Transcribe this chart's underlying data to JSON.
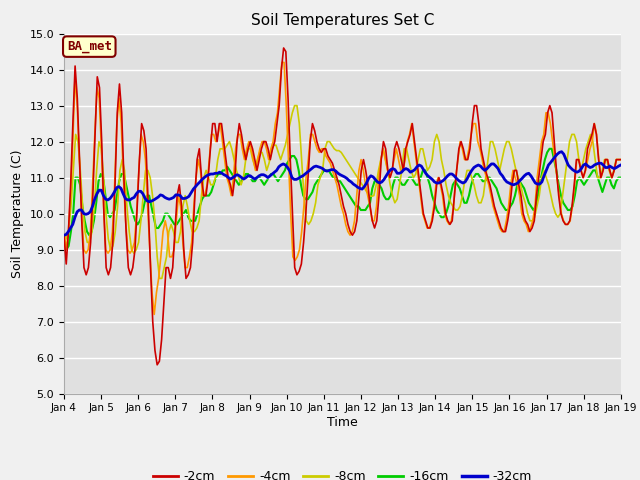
{
  "title": "Soil Temperatures Set C",
  "xlabel": "Time",
  "ylabel": "Soil Temperature (C)",
  "ylim": [
    5.0,
    15.0
  ],
  "yticks": [
    5.0,
    6.0,
    7.0,
    8.0,
    9.0,
    10.0,
    11.0,
    12.0,
    13.0,
    14.0,
    15.0
  ],
  "fig_bg_color": "#f0f0f0",
  "plot_bg_color": "#e0e0e0",
  "annotation_text": "BA_met",
  "annotation_bg": "#ffffcc",
  "annotation_border": "#800000",
  "legend_entries": [
    "-2cm",
    "-4cm",
    "-8cm",
    "-16cm",
    "-32cm"
  ],
  "line_colors": [
    "#cc0000",
    "#ff9900",
    "#cccc00",
    "#00cc00",
    "#0000cc"
  ],
  "line_widths": [
    1.2,
    1.2,
    1.2,
    1.5,
    2.0
  ],
  "xtick_labels": [
    "Jan 4",
    "Jan 5",
    "Jan 6",
    "Jan 7",
    "Jan 8",
    "Jan 9",
    "Jan 10",
    "Jan 11",
    "Jan 12",
    "Jan 13",
    "Jan 14",
    "Jan 15",
    "Jan 16",
    "Jan 17",
    "Jan 18",
    "Jan 19"
  ],
  "time_days": 15,
  "depth_2cm": [
    9.4,
    8.6,
    9.5,
    10.8,
    12.5,
    14.1,
    13.2,
    11.5,
    9.8,
    8.5,
    8.3,
    8.5,
    9.2,
    10.5,
    12.2,
    13.8,
    13.5,
    12.0,
    10.0,
    8.5,
    8.3,
    8.5,
    9.2,
    10.8,
    12.8,
    13.6,
    12.8,
    11.0,
    9.5,
    8.5,
    8.3,
    8.5,
    9.0,
    10.2,
    11.5,
    12.5,
    12.3,
    11.8,
    10.2,
    8.5,
    7.0,
    6.2,
    5.8,
    5.9,
    6.5,
    7.5,
    8.5,
    8.5,
    8.2,
    8.5,
    9.5,
    10.5,
    10.8,
    10.2,
    9.0,
    8.2,
    8.3,
    8.5,
    9.2,
    10.5,
    11.5,
    11.8,
    11.0,
    10.5,
    10.5,
    11.0,
    11.8,
    12.5,
    12.5,
    12.0,
    12.5,
    12.5,
    12.0,
    11.5,
    11.0,
    10.8,
    10.5,
    11.0,
    12.0,
    12.5,
    12.2,
    11.8,
    11.5,
    11.8,
    12.0,
    11.8,
    11.5,
    11.2,
    11.5,
    11.8,
    12.0,
    12.0,
    11.8,
    11.5,
    11.8,
    12.0,
    12.5,
    13.0,
    14.0,
    14.6,
    14.5,
    13.2,
    11.5,
    10.0,
    8.5,
    8.3,
    8.4,
    8.6,
    9.2,
    10.0,
    11.0,
    12.0,
    12.5,
    12.3,
    12.0,
    11.8,
    11.7,
    11.8,
    11.8,
    11.6,
    11.5,
    11.4,
    11.2,
    11.0,
    10.8,
    10.5,
    10.2,
    10.0,
    9.7,
    9.5,
    9.4,
    9.5,
    9.8,
    10.5,
    11.2,
    11.5,
    11.2,
    10.8,
    10.2,
    9.8,
    9.6,
    9.8,
    10.5,
    11.5,
    12.0,
    11.8,
    11.2,
    11.0,
    11.2,
    11.8,
    12.0,
    11.8,
    11.5,
    11.2,
    11.8,
    12.0,
    12.2,
    12.5,
    12.0,
    11.5,
    11.0,
    10.5,
    10.0,
    9.8,
    9.6,
    9.6,
    9.8,
    10.2,
    10.8,
    11.0,
    10.8,
    10.5,
    10.0,
    9.8,
    9.7,
    9.8,
    10.5,
    11.2,
    11.8,
    12.0,
    11.8,
    11.5,
    11.5,
    11.8,
    12.5,
    13.0,
    13.0,
    12.5,
    11.8,
    11.5,
    11.2,
    11.0,
    10.8,
    10.5,
    10.2,
    10.0,
    9.8,
    9.6,
    9.5,
    9.5,
    9.8,
    10.2,
    10.8,
    11.2,
    11.2,
    10.8,
    10.5,
    10.0,
    9.8,
    9.7,
    9.5,
    9.6,
    9.8,
    10.5,
    11.0,
    11.5,
    12.0,
    12.2,
    12.8,
    13.0,
    12.8,
    12.0,
    11.2,
    10.5,
    10.0,
    9.8,
    9.7,
    9.7,
    9.8,
    10.2,
    10.8,
    11.5,
    11.5,
    11.2,
    11.0,
    11.2,
    11.8,
    12.0,
    12.2,
    12.5,
    12.2,
    11.5,
    11.0,
    11.2,
    11.5,
    11.5,
    11.2,
    11.0,
    11.2,
    11.5,
    11.5,
    11.5
  ],
  "depth_4cm": [
    9.5,
    9.0,
    9.5,
    10.5,
    12.0,
    13.8,
    13.0,
    11.5,
    10.0,
    9.0,
    8.9,
    9.0,
    9.5,
    10.8,
    12.2,
    13.5,
    13.2,
    11.8,
    10.2,
    9.0,
    8.9,
    9.0,
    9.5,
    10.8,
    12.5,
    13.2,
    12.5,
    11.0,
    9.8,
    9.0,
    8.9,
    9.0,
    9.2,
    10.0,
    11.2,
    12.2,
    12.0,
    11.5,
    10.2,
    9.0,
    7.8,
    7.2,
    7.8,
    8.2,
    8.8,
    9.5,
    9.8,
    9.5,
    8.8,
    8.8,
    9.0,
    9.8,
    10.5,
    10.2,
    9.2,
    8.5,
    8.5,
    8.8,
    9.2,
    10.2,
    11.0,
    11.5,
    11.2,
    10.5,
    10.5,
    10.8,
    11.5,
    12.2,
    12.2,
    12.0,
    12.2,
    12.5,
    12.0,
    11.5,
    11.0,
    10.8,
    10.5,
    11.0,
    11.8,
    12.2,
    12.2,
    11.8,
    11.5,
    11.8,
    12.0,
    11.8,
    11.5,
    11.2,
    11.5,
    11.8,
    12.0,
    12.0,
    11.8,
    11.5,
    11.8,
    12.0,
    12.5,
    12.8,
    13.5,
    14.2,
    14.2,
    13.0,
    11.5,
    10.0,
    8.8,
    8.7,
    8.8,
    9.0,
    9.5,
    10.2,
    11.0,
    11.5,
    12.2,
    12.2,
    12.0,
    11.8,
    11.7,
    11.8,
    11.8,
    11.6,
    11.5,
    11.4,
    11.2,
    11.0,
    10.8,
    10.5,
    10.2,
    10.0,
    9.7,
    9.5,
    9.4,
    9.5,
    9.8,
    10.5,
    11.2,
    11.5,
    11.2,
    10.8,
    10.5,
    10.2,
    9.8,
    9.8,
    10.2,
    11.0,
    11.5,
    11.8,
    11.5,
    11.2,
    11.0,
    11.2,
    11.5,
    11.8,
    11.5,
    11.2,
    11.2,
    11.5,
    12.0,
    12.2,
    12.5,
    12.0,
    11.5,
    11.0,
    10.5,
    10.0,
    9.8,
    9.6,
    9.6,
    9.8,
    10.2,
    10.8,
    11.0,
    10.8,
    10.5,
    10.0,
    9.8,
    9.7,
    9.8,
    10.2,
    11.0,
    11.5,
    12.0,
    11.8,
    11.5,
    11.5,
    11.8,
    12.2,
    12.5,
    12.5,
    12.0,
    11.8,
    11.5,
    11.2,
    11.0,
    10.8,
    10.5,
    10.2,
    10.0,
    9.8,
    9.6,
    9.5,
    9.5,
    9.8,
    10.2,
    10.8,
    11.2,
    11.0,
    10.8,
    10.5,
    10.0,
    9.8,
    9.7,
    9.5,
    9.6,
    9.8,
    10.2,
    11.0,
    11.5,
    12.0,
    12.2,
    12.8,
    12.8,
    12.5,
    12.0,
    11.5,
    11.0,
    10.5,
    10.0,
    9.8,
    9.7,
    9.7,
    9.8,
    10.2,
    10.8,
    11.5,
    11.5,
    11.2,
    11.0,
    11.2,
    11.5,
    11.8,
    12.0,
    12.5,
    12.2,
    11.5,
    11.0,
    11.2,
    11.5,
    11.5,
    11.2,
    11.0,
    11.2,
    11.5,
    11.5,
    11.5
  ],
  "depth_8cm": [
    9.5,
    9.3,
    9.5,
    10.2,
    11.2,
    12.2,
    12.0,
    11.2,
    10.2,
    9.5,
    9.2,
    9.2,
    9.5,
    10.2,
    11.2,
    12.0,
    11.8,
    11.0,
    10.0,
    9.3,
    9.0,
    9.1,
    9.5,
    10.2,
    11.2,
    11.5,
    11.2,
    10.2,
    9.5,
    9.0,
    8.9,
    9.0,
    9.2,
    9.8,
    10.5,
    11.2,
    11.2,
    11.0,
    10.5,
    9.8,
    8.8,
    8.2,
    8.2,
    8.5,
    8.8,
    9.5,
    9.7,
    9.5,
    9.2,
    9.2,
    9.5,
    10.2,
    10.5,
    10.2,
    9.8,
    9.5,
    9.5,
    9.6,
    9.8,
    10.5,
    11.0,
    11.2,
    11.0,
    10.8,
    10.8,
    11.0,
    11.5,
    11.8,
    11.8,
    11.8,
    11.9,
    12.0,
    11.8,
    11.5,
    11.2,
    11.0,
    10.8,
    11.0,
    11.5,
    11.8,
    11.8,
    11.5,
    11.3,
    11.5,
    11.7,
    11.7,
    11.5,
    11.2,
    11.4,
    11.7,
    11.9,
    11.9,
    11.7,
    11.5,
    11.7,
    11.9,
    12.2,
    12.5,
    12.8,
    13.0,
    13.0,
    12.5,
    11.5,
    10.5,
    9.8,
    9.7,
    9.8,
    10.0,
    10.3,
    10.8,
    11.0,
    11.2,
    11.8,
    12.0,
    12.0,
    11.9,
    11.8,
    11.75,
    11.75,
    11.7,
    11.6,
    11.5,
    11.4,
    11.3,
    11.2,
    11.1,
    11.0,
    10.9,
    10.8,
    10.7,
    10.6,
    10.5,
    10.48,
    10.5,
    10.8,
    11.2,
    11.5,
    11.8,
    11.5,
    11.2,
    10.8,
    10.5,
    10.3,
    10.4,
    10.8,
    11.2,
    11.8,
    11.8,
    11.5,
    11.2,
    11.0,
    11.1,
    11.5,
    11.8,
    11.8,
    11.5,
    11.2,
    11.3,
    11.5,
    12.0,
    12.2,
    12.0,
    11.5,
    11.2,
    10.8,
    10.5,
    10.3,
    10.2,
    10.1,
    10.1,
    10.2,
    10.5,
    10.9,
    11.2,
    11.2,
    11.0,
    10.8,
    10.5,
    10.3,
    10.3,
    10.5,
    11.0,
    11.5,
    12.0,
    12.0,
    11.8,
    11.5,
    11.2,
    11.5,
    11.8,
    12.0,
    12.0,
    11.8,
    11.5,
    11.2,
    11.0,
    10.8,
    10.5,
    10.3,
    10.0,
    9.8,
    9.8,
    9.9,
    10.2,
    10.5,
    11.0,
    11.2,
    11.0,
    10.8,
    10.5,
    10.2,
    10.0,
    9.9,
    10.0,
    10.5,
    11.0,
    11.5,
    12.0,
    12.2,
    12.2,
    12.0,
    11.5,
    11.2,
    11.5,
    11.8,
    12.0,
    12.2,
    12.0,
    11.5,
    11.0,
    11.0,
    11.2,
    11.5,
    11.5,
    11.2,
    11.0,
    11.2,
    11.5,
    11.5,
    11.5
  ],
  "depth_16cm": [
    9.1,
    9.0,
    9.1,
    9.5,
    10.0,
    11.0,
    11.0,
    10.8,
    10.2,
    9.8,
    9.5,
    9.4,
    9.5,
    9.8,
    10.3,
    10.9,
    11.1,
    11.0,
    10.5,
    10.0,
    9.9,
    10.0,
    10.1,
    10.5,
    10.9,
    11.1,
    11.1,
    10.8,
    10.5,
    10.2,
    10.0,
    9.8,
    9.7,
    9.8,
    10.0,
    10.3,
    10.5,
    10.5,
    10.2,
    9.9,
    9.6,
    9.6,
    9.7,
    9.8,
    10.0,
    10.0,
    9.9,
    9.8,
    9.7,
    9.7,
    9.8,
    9.9,
    10.0,
    10.1,
    9.9,
    9.8,
    9.8,
    9.8,
    10.0,
    10.2,
    10.4,
    10.5,
    10.5,
    10.5,
    10.6,
    10.8,
    11.0,
    11.1,
    11.1,
    11.2,
    11.2,
    11.3,
    11.2,
    11.1,
    11.0,
    10.9,
    10.8,
    10.9,
    11.0,
    11.1,
    11.1,
    11.0,
    10.9,
    10.9,
    11.0,
    11.0,
    10.9,
    10.8,
    10.9,
    11.0,
    11.1,
    11.1,
    11.0,
    10.9,
    11.0,
    11.1,
    11.2,
    11.4,
    11.5,
    11.6,
    11.6,
    11.5,
    11.2,
    10.8,
    10.5,
    10.4,
    10.4,
    10.5,
    10.6,
    10.8,
    10.9,
    11.0,
    11.1,
    11.2,
    11.2,
    11.2,
    11.1,
    11.0,
    11.0,
    10.9,
    10.9,
    10.8,
    10.7,
    10.6,
    10.5,
    10.4,
    10.3,
    10.2,
    10.2,
    10.1,
    10.1,
    10.1,
    10.2,
    10.3,
    10.7,
    10.9,
    10.9,
    10.8,
    10.7,
    10.5,
    10.4,
    10.4,
    10.5,
    10.8,
    11.0,
    11.0,
    10.9,
    10.8,
    10.8,
    10.9,
    11.0,
    11.0,
    10.9,
    10.8,
    10.8,
    11.0,
    11.2,
    11.2,
    11.0,
    10.8,
    10.5,
    10.3,
    10.1,
    10.0,
    9.9,
    9.9,
    10.0,
    10.2,
    10.5,
    10.8,
    10.9,
    10.8,
    10.7,
    10.5,
    10.3,
    10.3,
    10.5,
    10.8,
    11.0,
    11.1,
    11.1,
    11.0,
    10.9,
    10.9,
    11.0,
    11.0,
    10.9,
    10.8,
    10.7,
    10.5,
    10.3,
    10.2,
    10.1,
    10.1,
    10.2,
    10.3,
    10.5,
    10.8,
    10.9,
    10.8,
    10.7,
    10.5,
    10.3,
    10.2,
    10.1,
    10.2,
    10.5,
    10.9,
    11.2,
    11.5,
    11.7,
    11.8,
    11.8,
    11.5,
    11.2,
    10.8,
    10.5,
    10.3,
    10.2,
    10.1,
    10.1,
    10.2,
    10.5,
    10.9,
    11.0,
    10.9,
    10.8,
    10.9,
    11.0,
    11.1,
    11.2,
    11.2,
    11.0,
    10.8,
    10.6,
    10.8,
    11.0,
    11.0,
    10.8,
    10.7,
    10.9,
    11.0,
    11.0
  ],
  "depth_32cm": [
    9.4,
    9.42,
    9.5,
    9.6,
    9.7,
    9.9,
    10.05,
    10.1,
    10.1,
    10.0,
    9.98,
    10.0,
    10.05,
    10.2,
    10.4,
    10.55,
    10.65,
    10.65,
    10.5,
    10.4,
    10.38,
    10.42,
    10.5,
    10.6,
    10.72,
    10.75,
    10.7,
    10.55,
    10.42,
    10.38,
    10.38,
    10.42,
    10.45,
    10.55,
    10.62,
    10.62,
    10.55,
    10.42,
    10.35,
    10.33,
    10.35,
    10.38,
    10.42,
    10.46,
    10.52,
    10.5,
    10.45,
    10.42,
    10.4,
    10.42,
    10.45,
    10.52,
    10.52,
    10.5,
    10.42,
    10.42,
    10.44,
    10.48,
    10.58,
    10.68,
    10.75,
    10.82,
    10.88,
    10.95,
    11.0,
    11.05,
    11.08,
    11.1,
    11.1,
    11.12,
    11.12,
    11.15,
    11.12,
    11.08,
    11.05,
    11.0,
    10.96,
    11.0,
    11.05,
    11.08,
    11.05,
    11.0,
    10.96,
    11.0,
    11.05,
    11.05,
    11.0,
    10.96,
    11.0,
    11.05,
    11.08,
    11.08,
    11.05,
    11.0,
    11.05,
    11.1,
    11.15,
    11.2,
    11.3,
    11.35,
    11.38,
    11.35,
    11.28,
    11.18,
    11.0,
    10.95,
    10.95,
    10.98,
    11.02,
    11.05,
    11.1,
    11.15,
    11.2,
    11.25,
    11.3,
    11.32,
    11.3,
    11.28,
    11.25,
    11.2,
    11.18,
    11.2,
    11.22,
    11.22,
    11.18,
    11.12,
    11.08,
    11.05,
    11.02,
    10.98,
    10.92,
    10.88,
    10.82,
    10.78,
    10.73,
    10.7,
    10.68,
    10.75,
    10.85,
    10.98,
    11.05,
    11.02,
    10.95,
    10.88,
    10.85,
    10.88,
    10.95,
    11.05,
    11.15,
    11.22,
    11.25,
    11.22,
    11.12,
    11.12,
    11.15,
    11.22,
    11.25,
    11.22,
    11.15,
    11.18,
    11.22,
    11.3,
    11.35,
    11.32,
    11.22,
    11.12,
    11.05,
    11.0,
    10.95,
    10.88,
    10.85,
    10.85,
    10.88,
    10.92,
    10.98,
    11.05,
    11.1,
    11.1,
    11.05,
    10.98,
    10.92,
    10.88,
    10.85,
    10.88,
    10.98,
    11.1,
    11.2,
    11.28,
    11.32,
    11.35,
    11.32,
    11.25,
    11.2,
    11.25,
    11.32,
    11.38,
    11.38,
    11.32,
    11.25,
    11.12,
    11.05,
    10.95,
    10.88,
    10.85,
    10.82,
    10.8,
    10.82,
    10.85,
    10.92,
    10.98,
    11.05,
    11.1,
    11.12,
    11.05,
    10.95,
    10.85,
    10.82,
    10.82,
    10.88,
    11.05,
    11.2,
    11.35,
    11.42,
    11.5,
    11.58,
    11.65,
    11.7,
    11.72,
    11.65,
    11.5,
    11.35,
    11.28,
    11.22,
    11.18,
    11.15,
    11.18,
    11.25,
    11.35,
    11.38,
    11.32,
    11.28,
    11.3,
    11.35,
    11.38,
    11.4,
    11.4,
    11.35,
    11.28,
    11.28,
    11.32,
    11.28,
    11.25,
    11.28,
    11.32,
    11.35
  ]
}
